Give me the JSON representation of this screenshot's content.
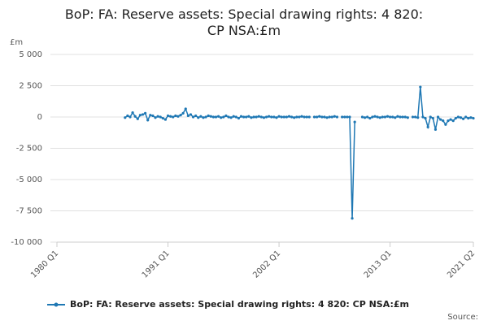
{
  "chart_data": {
    "type": "line",
    "title": "BoP: FA: Reserve assets: Special drawing rights: 4 820: CP NSA:£m",
    "y_unit": "£m",
    "source": "Source:",
    "categories": [
      "1980 Q1",
      null,
      null,
      null,
      null,
      null,
      null,
      null,
      null,
      null,
      null,
      null,
      null,
      null,
      null,
      null,
      null,
      null,
      null,
      null,
      null,
      null,
      null,
      null,
      null,
      null,
      null,
      null,
      null,
      null,
      null,
      null,
      null,
      null,
      null,
      null,
      null,
      null,
      null,
      null,
      null,
      null,
      null,
      null,
      "1991 Q1",
      null,
      null,
      null,
      null,
      null,
      null,
      null,
      null,
      null,
      null,
      null,
      null,
      null,
      null,
      null,
      null,
      null,
      null,
      null,
      null,
      null,
      null,
      null,
      null,
      null,
      null,
      null,
      null,
      null,
      null,
      null,
      null,
      null,
      null,
      null,
      null,
      null,
      null,
      null,
      null,
      null,
      null,
      null,
      "2002 Q1",
      null,
      null,
      null,
      null,
      null,
      null,
      null,
      null,
      null,
      null,
      null,
      null,
      null,
      null,
      null,
      null,
      null,
      null,
      null,
      null,
      null,
      null,
      null,
      null,
      null,
      null,
      null,
      null,
      null,
      null,
      null,
      null,
      null,
      null,
      null,
      null,
      null,
      null,
      null,
      null,
      null,
      null,
      null,
      "2013 Q1",
      null,
      null,
      null,
      null,
      null,
      null,
      null,
      null,
      null,
      null,
      null,
      null,
      null,
      null,
      null,
      null,
      null,
      null,
      null,
      null,
      null,
      null,
      null,
      null,
      null,
      null,
      null,
      null,
      null,
      null,
      null,
      null,
      "2021 Q2"
    ],
    "series": [
      {
        "name": "BoP: FA: Reserve assets: Special drawing rights: 4 820: CP NSA:£m",
        "color": "#1f78b4",
        "values": [
          null,
          null,
          null,
          null,
          null,
          null,
          null,
          null,
          null,
          null,
          null,
          null,
          null,
          null,
          null,
          null,
          null,
          null,
          null,
          null,
          null,
          null,
          null,
          null,
          null,
          null,
          null,
          -50,
          100,
          0,
          350,
          50,
          -150,
          150,
          200,
          300,
          -250,
          150,
          100,
          -50,
          50,
          0,
          -100,
          -200,
          100,
          50,
          0,
          100,
          50,
          150,
          300,
          650,
          100,
          200,
          0,
          100,
          -50,
          50,
          -50,
          0,
          100,
          50,
          0,
          0,
          50,
          -50,
          0,
          100,
          0,
          -50,
          50,
          0,
          -100,
          50,
          0,
          0,
          50,
          -50,
          0,
          0,
          50,
          0,
          -50,
          0,
          50,
          0,
          0,
          -50,
          50,
          0,
          0,
          0,
          50,
          0,
          -50,
          0,
          0,
          50,
          0,
          0,
          0,
          null,
          0,
          0,
          50,
          0,
          0,
          -50,
          0,
          0,
          50,
          0,
          null,
          0,
          0,
          0,
          0,
          -8100,
          -400,
          null,
          null,
          0,
          -50,
          0,
          -100,
          0,
          50,
          0,
          -50,
          0,
          0,
          50,
          0,
          0,
          -50,
          50,
          0,
          0,
          0,
          -50,
          null,
          0,
          0,
          -50,
          2400,
          0,
          -100,
          -800,
          0,
          -100,
          -1000,
          0,
          -200,
          -300,
          -600,
          -300,
          -200,
          -300,
          -100,
          0,
          -50,
          -150,
          0,
          -100,
          -50,
          -100
        ]
      }
    ],
    "ylim": [
      -10000,
      5000
    ],
    "yticks": [
      {
        "value": 5000,
        "label": "5 000"
      },
      {
        "value": 2500,
        "label": "2 500"
      },
      0,
      {
        "value": -2500,
        "label": "-2 500"
      },
      {
        "value": -5000,
        "label": "-5 000"
      },
      {
        "value": -7500,
        "label": "-7 500"
      },
      {
        "value": -10000,
        "label": "-10 000"
      }
    ],
    "grid": true
  }
}
